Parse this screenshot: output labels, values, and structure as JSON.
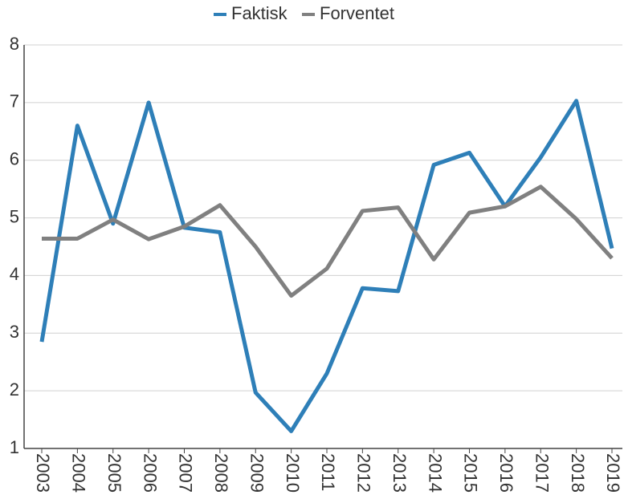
{
  "chart_data": {
    "type": "line",
    "categories": [
      "2003",
      "2004",
      "2005",
      "2006",
      "2007",
      "2008",
      "2009",
      "2010",
      "2011",
      "2012",
      "2013",
      "2014",
      "2015",
      "2016",
      "2017",
      "2018",
      "2019"
    ],
    "series": [
      {
        "name": "Faktisk",
        "color": "#2e7fb8",
        "values": [
          2.85,
          6.6,
          4.9,
          7.0,
          4.83,
          4.75,
          1.97,
          1.3,
          2.3,
          3.78,
          3.73,
          5.92,
          6.13,
          5.2,
          6.05,
          7.03,
          4.47
        ]
      },
      {
        "name": "Forventet",
        "color": "#808080",
        "values": [
          4.64,
          4.64,
          4.97,
          4.63,
          4.85,
          5.22,
          4.5,
          3.65,
          4.12,
          5.12,
          5.18,
          4.28,
          5.09,
          5.2,
          5.54,
          4.98,
          4.3
        ]
      }
    ],
    "ylim": [
      1,
      8
    ],
    "yticks": [
      1,
      2,
      3,
      4,
      5,
      6,
      7,
      8
    ],
    "grid": true,
    "legend": "top"
  }
}
